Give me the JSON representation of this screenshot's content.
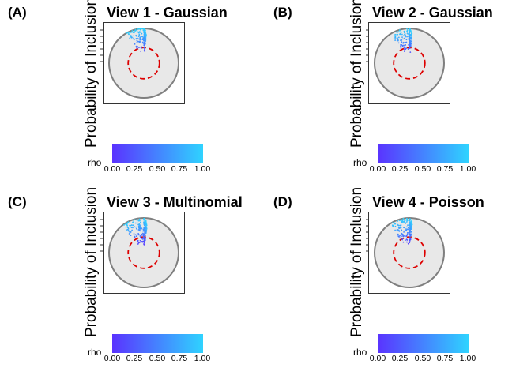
{
  "chart_data": [
    {
      "type": "scatter",
      "panel_label": "(A)",
      "title": "View 1 - Gaussian",
      "ylabel": "Probability of Inclusion",
      "legend": {
        "title": "rho",
        "ticks": [
          "0.00",
          "0.25",
          "0.50",
          "0.75",
          "1.00"
        ],
        "low_color": "#5a33ff",
        "high_color": "#2fd3ff",
        "range": [
          0,
          1
        ]
      },
      "circle_plot": {
        "wedge_start_deg": 0,
        "wedge_end_deg": 30,
        "threshold_circle": 0.45,
        "point_spread": "outer",
        "n_points": 160
      }
    },
    {
      "type": "scatter",
      "panel_label": "(B)",
      "title": "View 2 - Gaussian",
      "ylabel": "Probability of Inclusion",
      "legend": {
        "title": "rho",
        "ticks": [
          "0.00",
          "0.25",
          "0.50",
          "0.75",
          "1.00"
        ],
        "low_color": "#5a33ff",
        "high_color": "#2fd3ff",
        "range": [
          0,
          1
        ]
      },
      "circle_plot": {
        "wedge_start_deg": 0,
        "wedge_end_deg": 32,
        "threshold_circle": 0.45,
        "point_spread": "outer",
        "n_points": 160
      }
    },
    {
      "type": "scatter",
      "panel_label": "(C)",
      "title": "View 3 - Multinomial",
      "ylabel": "Probability of Inclusion",
      "legend": {
        "title": "rho",
        "ticks": [
          "0.00",
          "0.25",
          "0.50",
          "0.75",
          "1.00"
        ],
        "low_color": "#5a33ff",
        "high_color": "#2fd3ff",
        "range": [
          0,
          1
        ]
      },
      "circle_plot": {
        "wedge_start_deg": 0,
        "wedge_end_deg": 38,
        "threshold_circle": 0.45,
        "point_spread": "wide",
        "n_points": 200
      }
    },
    {
      "type": "scatter",
      "panel_label": "(D)",
      "title": "View 4 - Poisson",
      "ylabel": "Probability of Inclusion",
      "legend": {
        "title": "rho",
        "ticks": [
          "0.00",
          "0.25",
          "0.50",
          "0.75",
          "1.00"
        ],
        "low_color": "#5a33ff",
        "high_color": "#2fd3ff",
        "range": [
          0,
          1
        ]
      },
      "circle_plot": {
        "wedge_start_deg": 0,
        "wedge_end_deg": 34,
        "threshold_circle": 0.45,
        "point_spread": "wide",
        "n_points": 200
      }
    }
  ]
}
